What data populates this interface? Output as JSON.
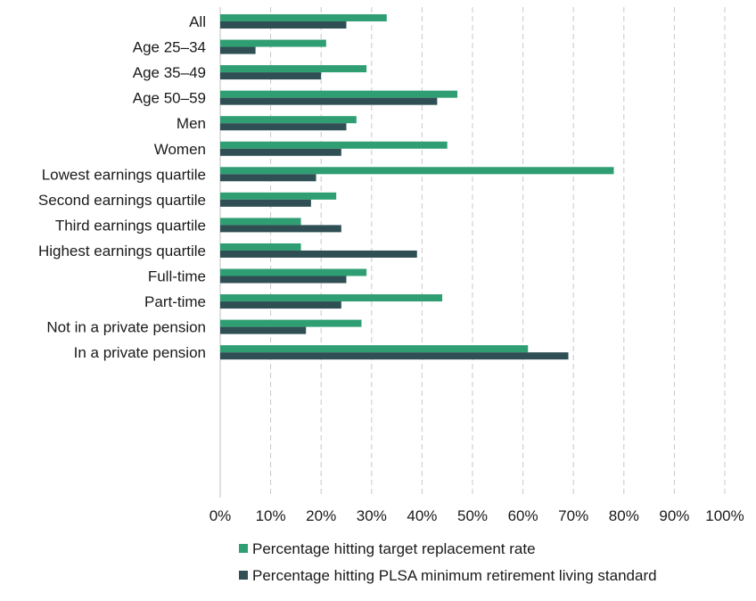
{
  "chart_data": {
    "type": "bar",
    "orientation": "horizontal",
    "title": "",
    "xlabel": "",
    "ylabel": "",
    "xlim": [
      0,
      100
    ],
    "grid": true,
    "legend_position": "bottom",
    "tick_labels": [
      "0%",
      "10%",
      "20%",
      "30%",
      "40%",
      "50%",
      "60%",
      "70%",
      "80%",
      "90%",
      "100%"
    ],
    "categories": [
      "All",
      "Age 25–34",
      "Age 35–49",
      "Age 50–59",
      "Men",
      "Women",
      "Lowest earnings quartile",
      "Second earnings quartile",
      "Third earnings quartile",
      "Highest earnings quartile",
      "Full-time",
      "Part-time",
      "Not in a private pension",
      "In a private pension"
    ],
    "groups": [
      [
        0
      ],
      [
        1,
        2,
        3
      ],
      [
        4,
        5
      ],
      [
        6,
        7,
        8,
        9
      ],
      [
        10,
        11
      ],
      [
        12,
        13
      ]
    ],
    "series": [
      {
        "name": "Percentage hitting target replacement rate",
        "color": "#2f9e72",
        "values": [
          33,
          21,
          29,
          47,
          27,
          45,
          78,
          23,
          16,
          16,
          29,
          44,
          28,
          61
        ]
      },
      {
        "name": "Percentage hitting PLSA minimum retirement living standard",
        "color": "#2f4f55",
        "values": [
          25,
          7,
          20,
          43,
          25,
          24,
          19,
          18,
          24,
          39,
          25,
          24,
          17,
          69
        ]
      }
    ]
  }
}
